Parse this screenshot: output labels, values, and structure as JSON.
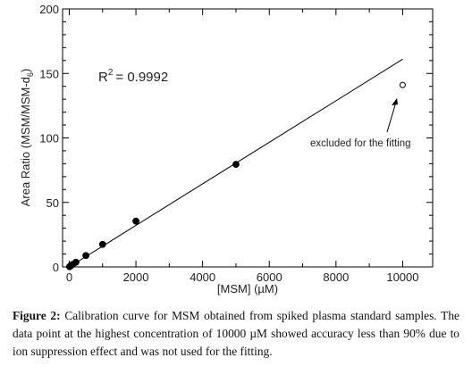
{
  "chart_data": {
    "type": "scatter",
    "xlabel": "[MSM] (µM)",
    "ylabel_main": "Area Ratio (MSM/MSM-d",
    "ylabel_sub": "6",
    "ylabel_end": ")",
    "xlim": [
      -200,
      10900
    ],
    "ylim": [
      0,
      200
    ],
    "x_ticks": [
      0,
      2000,
      4000,
      6000,
      8000,
      10000
    ],
    "y_ticks": [
      0,
      50,
      100,
      150,
      200
    ],
    "r2_label": "R",
    "r2_sup": "2",
    "r2_value": "= 0.9992",
    "annotation": "excluded for the fitting",
    "series": [
      {
        "marker": "filled-circle",
        "x": [
          10,
          25,
          50,
          100,
          200,
          500,
          1000,
          2000,
          5000
        ],
        "y": [
          0.2,
          0.4,
          1.0,
          1.9,
          3.6,
          8.8,
          17.5,
          35.5,
          79.5
        ]
      },
      {
        "marker": "open-circle",
        "x": [
          10000
        ],
        "y": [
          141
        ]
      }
    ],
    "fit_line": {
      "x": [
        0,
        10000
      ],
      "y": [
        0,
        161
      ]
    }
  },
  "caption": {
    "label": "Figure 2:",
    "text": "Calibration curve for MSM obtained from spiked plasma standard samples. The data point at the highest concentration of 10000 µM showed accuracy less than 90% due to ion suppression effect and was not used for the fitting."
  }
}
